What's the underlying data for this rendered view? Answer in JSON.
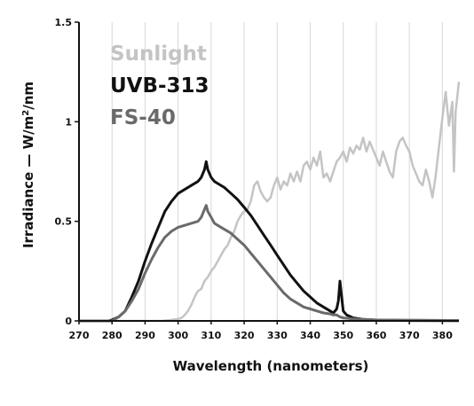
{
  "chart_data": {
    "type": "line",
    "title": "",
    "xlabel": "Wavelength (nanometers)",
    "ylabel_main": "Irradiance — W/m",
    "ylabel_sup": "2",
    "ylabel_end": "/nm",
    "xlim": [
      270,
      385
    ],
    "ylim": [
      0,
      1.5
    ],
    "x_ticks": [
      270,
      280,
      290,
      300,
      310,
      320,
      330,
      340,
      350,
      360,
      370,
      380
    ],
    "x_tick_labels": [
      "270",
      "280",
      "290",
      "300",
      "310",
      "320",
      "330",
      "340",
      "350",
      "360",
      "370",
      "380"
    ],
    "y_ticks": [
      0,
      0.5,
      1,
      1.5
    ],
    "y_tick_labels": [
      "0",
      "0.5",
      "1",
      "1.5"
    ],
    "grid": "vertical",
    "legend_position": "top-left",
    "series": [
      {
        "name": "Sunlight",
        "color": "#c4c4c4",
        "points": [
          [
            270,
            0
          ],
          [
            295,
            0
          ],
          [
            298,
            0.005
          ],
          [
            300,
            0.01
          ],
          [
            301,
            0.015
          ],
          [
            302,
            0.03
          ],
          [
            303,
            0.05
          ],
          [
            304,
            0.08
          ],
          [
            305,
            0.12
          ],
          [
            306,
            0.15
          ],
          [
            307,
            0.16
          ],
          [
            308,
            0.2
          ],
          [
            309,
            0.22
          ],
          [
            310,
            0.25
          ],
          [
            311,
            0.27
          ],
          [
            312,
            0.3
          ],
          [
            313,
            0.33
          ],
          [
            314,
            0.36
          ],
          [
            315,
            0.38
          ],
          [
            316,
            0.42
          ],
          [
            317,
            0.45
          ],
          [
            318,
            0.5
          ],
          [
            319,
            0.53
          ],
          [
            320,
            0.55
          ],
          [
            321,
            0.56
          ],
          [
            322,
            0.6
          ],
          [
            323,
            0.68
          ],
          [
            324,
            0.7
          ],
          [
            325,
            0.65
          ],
          [
            326,
            0.62
          ],
          [
            327,
            0.6
          ],
          [
            328,
            0.62
          ],
          [
            329,
            0.68
          ],
          [
            330,
            0.72
          ],
          [
            331,
            0.66
          ],
          [
            332,
            0.7
          ],
          [
            333,
            0.68
          ],
          [
            334,
            0.74
          ],
          [
            335,
            0.7
          ],
          [
            336,
            0.75
          ],
          [
            337,
            0.7
          ],
          [
            338,
            0.78
          ],
          [
            339,
            0.8
          ],
          [
            340,
            0.76
          ],
          [
            341,
            0.82
          ],
          [
            342,
            0.78
          ],
          [
            343,
            0.85
          ],
          [
            344,
            0.72
          ],
          [
            345,
            0.74
          ],
          [
            346,
            0.7
          ],
          [
            347,
            0.75
          ],
          [
            348,
            0.8
          ],
          [
            349,
            0.82
          ],
          [
            350,
            0.85
          ],
          [
            351,
            0.8
          ],
          [
            352,
            0.87
          ],
          [
            353,
            0.84
          ],
          [
            354,
            0.88
          ],
          [
            355,
            0.86
          ],
          [
            356,
            0.92
          ],
          [
            357,
            0.85
          ],
          [
            358,
            0.9
          ],
          [
            359,
            0.86
          ],
          [
            360,
            0.82
          ],
          [
            361,
            0.78
          ],
          [
            362,
            0.85
          ],
          [
            363,
            0.8
          ],
          [
            364,
            0.75
          ],
          [
            365,
            0.72
          ],
          [
            366,
            0.85
          ],
          [
            367,
            0.9
          ],
          [
            368,
            0.92
          ],
          [
            369,
            0.88
          ],
          [
            370,
            0.85
          ],
          [
            371,
            0.78
          ],
          [
            372,
            0.74
          ],
          [
            373,
            0.7
          ],
          [
            374,
            0.68
          ],
          [
            375,
            0.76
          ],
          [
            376,
            0.7
          ],
          [
            377,
            0.62
          ],
          [
            378,
            0.73
          ],
          [
            379,
            0.88
          ],
          [
            380,
            1.02
          ],
          [
            381,
            1.15
          ],
          [
            382,
            0.98
          ],
          [
            383,
            1.1
          ],
          [
            383.5,
            0.75
          ],
          [
            384,
            1.05
          ],
          [
            385,
            1.2
          ]
        ]
      },
      {
        "name": "UVB-313",
        "color": "#111111",
        "points": [
          [
            270,
            0
          ],
          [
            279,
            0
          ],
          [
            280,
            0.005
          ],
          [
            282,
            0.02
          ],
          [
            284,
            0.05
          ],
          [
            286,
            0.12
          ],
          [
            288,
            0.2
          ],
          [
            290,
            0.3
          ],
          [
            292,
            0.39
          ],
          [
            294,
            0.47
          ],
          [
            296,
            0.55
          ],
          [
            298,
            0.6
          ],
          [
            300,
            0.64
          ],
          [
            302,
            0.66
          ],
          [
            304,
            0.68
          ],
          [
            306,
            0.7
          ],
          [
            307,
            0.72
          ],
          [
            308,
            0.76
          ],
          [
            308.5,
            0.8
          ],
          [
            309,
            0.76
          ],
          [
            310,
            0.72
          ],
          [
            311,
            0.7
          ],
          [
            312,
            0.69
          ],
          [
            314,
            0.67
          ],
          [
            316,
            0.64
          ],
          [
            318,
            0.61
          ],
          [
            320,
            0.57
          ],
          [
            322,
            0.53
          ],
          [
            324,
            0.48
          ],
          [
            326,
            0.43
          ],
          [
            328,
            0.38
          ],
          [
            330,
            0.33
          ],
          [
            332,
            0.28
          ],
          [
            334,
            0.23
          ],
          [
            336,
            0.19
          ],
          [
            338,
            0.15
          ],
          [
            340,
            0.12
          ],
          [
            342,
            0.09
          ],
          [
            344,
            0.07
          ],
          [
            346,
            0.05
          ],
          [
            347,
            0.04
          ],
          [
            348,
            0.06
          ],
          [
            348.5,
            0.1
          ],
          [
            349,
            0.2
          ],
          [
            349.5,
            0.12
          ],
          [
            350,
            0.05
          ],
          [
            351,
            0.03
          ],
          [
            353,
            0.015
          ],
          [
            356,
            0.008
          ],
          [
            360,
            0.004
          ],
          [
            370,
            0.002
          ],
          [
            385,
            0.001
          ]
        ]
      },
      {
        "name": "FS-40",
        "color": "#6a6a6a",
        "points": [
          [
            270,
            0
          ],
          [
            280,
            0
          ],
          [
            282,
            0.02
          ],
          [
            284,
            0.05
          ],
          [
            286,
            0.1
          ],
          [
            288,
            0.16
          ],
          [
            290,
            0.24
          ],
          [
            292,
            0.31
          ],
          [
            294,
            0.37
          ],
          [
            296,
            0.42
          ],
          [
            298,
            0.45
          ],
          [
            300,
            0.47
          ],
          [
            302,
            0.48
          ],
          [
            304,
            0.49
          ],
          [
            306,
            0.5
          ],
          [
            307,
            0.52
          ],
          [
            308,
            0.56
          ],
          [
            308.5,
            0.58
          ],
          [
            309,
            0.55
          ],
          [
            310,
            0.52
          ],
          [
            311,
            0.49
          ],
          [
            312,
            0.48
          ],
          [
            314,
            0.46
          ],
          [
            316,
            0.44
          ],
          [
            318,
            0.41
          ],
          [
            320,
            0.38
          ],
          [
            322,
            0.34
          ],
          [
            324,
            0.3
          ],
          [
            326,
            0.26
          ],
          [
            328,
            0.22
          ],
          [
            330,
            0.18
          ],
          [
            332,
            0.14
          ],
          [
            334,
            0.11
          ],
          [
            336,
            0.09
          ],
          [
            338,
            0.07
          ],
          [
            340,
            0.06
          ],
          [
            342,
            0.05
          ],
          [
            344,
            0.04
          ],
          [
            346,
            0.035
          ],
          [
            347,
            0.03
          ],
          [
            348,
            0.03
          ],
          [
            349,
            0.02
          ],
          [
            350,
            0.015
          ],
          [
            353,
            0.01
          ],
          [
            360,
            0.005
          ],
          [
            385,
            0.002
          ]
        ]
      }
    ]
  }
}
